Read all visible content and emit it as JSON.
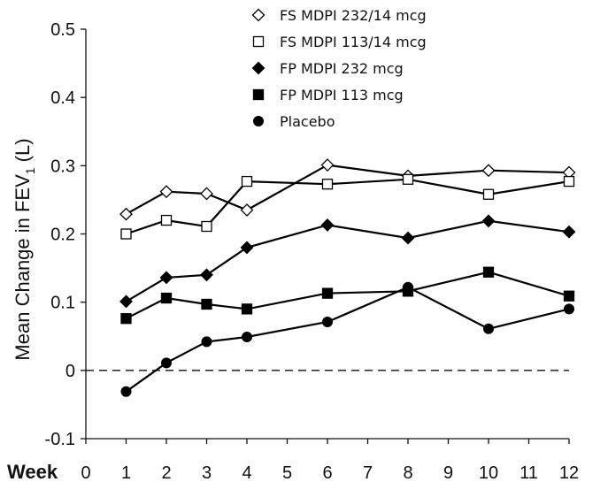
{
  "chart_data": {
    "type": "line",
    "ylabel": "Mean Change in FEV",
    "ylabel_subscript": "1",
    "ylabel_suffix": " (L)",
    "xlabel": "Week",
    "ylim": [
      -0.1,
      0.5
    ],
    "yticks": [
      -0.1,
      0,
      0.1,
      0.2,
      0.3,
      0.4,
      0.5
    ],
    "ytick_labels": [
      "-0.1",
      "0",
      "0.1",
      "0.2",
      "0.3",
      "0.4",
      "0.5"
    ],
    "xlim": [
      0,
      12
    ],
    "xticks": [
      0,
      1,
      2,
      3,
      4,
      5,
      6,
      7,
      8,
      9,
      10,
      11,
      12
    ],
    "xtick_labels": [
      "0",
      "1",
      "2",
      "3",
      "4",
      "5",
      "6",
      "7",
      "8",
      "9",
      "10",
      "11",
      "12"
    ],
    "reference_line": {
      "y": 0,
      "style": "dashed"
    },
    "grid": false,
    "legend_position": "top-right",
    "x": [
      1,
      2,
      3,
      4,
      6,
      8,
      10,
      12
    ],
    "series": [
      {
        "name": "FS MDPI 232/14 mcg",
        "marker": "diamond-open",
        "values": [
          0.229,
          0.262,
          0.259,
          0.235,
          0.301,
          0.285,
          0.293,
          0.29
        ]
      },
      {
        "name": "FS MDPI 113/14 mcg",
        "marker": "square-open",
        "values": [
          0.2,
          0.22,
          0.211,
          0.277,
          0.273,
          0.28,
          0.258,
          0.277
        ]
      },
      {
        "name": "FP MDPI 232 mcg",
        "marker": "diamond-filled",
        "values": [
          0.101,
          0.136,
          0.14,
          0.18,
          0.213,
          0.194,
          0.219,
          0.203
        ]
      },
      {
        "name": "FP MDPI 113 mcg",
        "marker": "square-filled",
        "values": [
          0.076,
          0.106,
          0.097,
          0.09,
          0.113,
          0.116,
          0.144,
          0.109
        ]
      },
      {
        "name": "Placebo",
        "marker": "circle-filled",
        "values": [
          -0.031,
          0.011,
          0.042,
          0.049,
          0.071,
          0.122,
          0.061,
          0.09
        ]
      }
    ]
  }
}
